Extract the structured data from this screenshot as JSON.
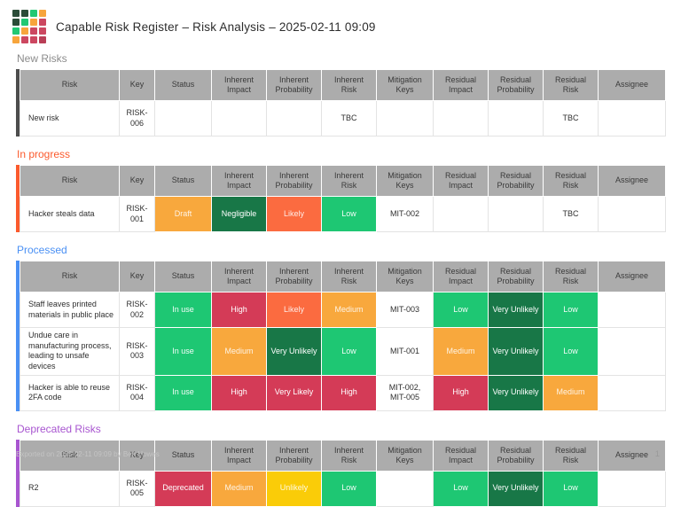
{
  "header": {
    "title": "Capable Risk Register – Risk Analysis – 2025-02-11 09:09"
  },
  "logo": {
    "palette": {
      "dark": "#2B4C38",
      "green": "#21C873",
      "orange": "#F7A53C",
      "red": "#CC4760",
      "red2": "#B93E56"
    },
    "grid": [
      [
        "dark",
        "dark",
        "green",
        "orange"
      ],
      [
        "dark",
        "green",
        "orange",
        "red"
      ],
      [
        "green",
        "orange",
        "red",
        "red"
      ],
      [
        "orange",
        "red",
        "red",
        "red2"
      ]
    ]
  },
  "columns": [
    "Risk",
    "Key",
    "Status",
    "Inherent Impact",
    "Inherent Probability",
    "Inherent Risk",
    "Mitigation Keys",
    "Residual Impact",
    "Residual Probability",
    "Residual Risk",
    "Assignee"
  ],
  "palette": {
    "green": {
      "bg": "#1EC773",
      "fg": "#FFFFFFF2"
    },
    "darkgreen": {
      "bg": "#187747",
      "fg": "#FFFFFF"
    },
    "orange": {
      "bg": "#F8A83D",
      "fg": "#FFFFFFDD"
    },
    "tomato": {
      "bg": "#FB6B40",
      "fg": "#FFFFFFDD"
    },
    "crimson": {
      "bg": "#D43B57",
      "fg": "#FFFFFF"
    },
    "yellow": {
      "bg": "#FACC08",
      "fg": "#FFFFFFE0"
    }
  },
  "sections": [
    {
      "id": "new-risks",
      "title": "New Risks",
      "title_color": "#8C8C8C",
      "accent": "#4D4D4D",
      "rows": [
        {
          "cells": [
            {
              "t": "New risk"
            },
            {
              "t": "RISK-006"
            },
            {
              "t": ""
            },
            {
              "t": ""
            },
            {
              "t": ""
            },
            {
              "t": "TBC"
            },
            {
              "t": ""
            },
            {
              "t": ""
            },
            {
              "t": ""
            },
            {
              "t": "TBC"
            },
            {
              "t": ""
            }
          ]
        }
      ]
    },
    {
      "id": "in-progress",
      "title": "In progress",
      "title_color": "#FB5A2D",
      "accent": "#FB5A2D",
      "rows": [
        {
          "cells": [
            {
              "t": "Hacker steals data"
            },
            {
              "t": "RISK-001"
            },
            {
              "t": "Draft",
              "c": "orange"
            },
            {
              "t": "Negligible",
              "c": "darkgreen"
            },
            {
              "t": "Likely",
              "c": "tomato"
            },
            {
              "t": "Low",
              "c": "green"
            },
            {
              "t": "MIT-002"
            },
            {
              "t": ""
            },
            {
              "t": ""
            },
            {
              "t": "TBC"
            },
            {
              "t": ""
            }
          ]
        }
      ]
    },
    {
      "id": "processed",
      "title": "Processed",
      "title_color": "#4A90F4",
      "accent": "#4A90F4",
      "rows": [
        {
          "cells": [
            {
              "t": "Staff leaves printed materials in public place"
            },
            {
              "t": "RISK-002"
            },
            {
              "t": "In use",
              "c": "green"
            },
            {
              "t": "High",
              "c": "crimson"
            },
            {
              "t": "Likely",
              "c": "tomato"
            },
            {
              "t": "Medium",
              "c": "orange"
            },
            {
              "t": "MIT-003"
            },
            {
              "t": "Low",
              "c": "green"
            },
            {
              "t": "Very Unlikely",
              "c": "darkgreen"
            },
            {
              "t": "Low",
              "c": "green"
            },
            {
              "t": ""
            }
          ]
        },
        {
          "cells": [
            {
              "t": "Undue care in manufacturing process, leading to unsafe devices"
            },
            {
              "t": "RISK-003"
            },
            {
              "t": "In use",
              "c": "green"
            },
            {
              "t": "Medium",
              "c": "orange"
            },
            {
              "t": "Very Unlikely",
              "c": "darkgreen"
            },
            {
              "t": "Low",
              "c": "green"
            },
            {
              "t": "MIT-001"
            },
            {
              "t": "Medium",
              "c": "orange"
            },
            {
              "t": "Very Unlikely",
              "c": "darkgreen"
            },
            {
              "t": "Low",
              "c": "green"
            },
            {
              "t": ""
            }
          ]
        },
        {
          "cells": [
            {
              "t": "Hacker is able to reuse 2FA code"
            },
            {
              "t": "RISK-004"
            },
            {
              "t": "In use",
              "c": "green"
            },
            {
              "t": "High",
              "c": "crimson"
            },
            {
              "t": "Very Likely",
              "c": "crimson"
            },
            {
              "t": "High",
              "c": "crimson"
            },
            {
              "t": "MIT-002, MIT-005"
            },
            {
              "t": "High",
              "c": "crimson"
            },
            {
              "t": "Very Unlikely",
              "c": "darkgreen"
            },
            {
              "t": "Medium",
              "c": "orange"
            },
            {
              "t": ""
            }
          ]
        }
      ]
    },
    {
      "id": "deprecated-risks",
      "title": "Deprecated Risks",
      "title_color": "#A855D0",
      "accent": "#A855D0",
      "rows": [
        {
          "cells": [
            {
              "t": "R2"
            },
            {
              "t": "RISK-005"
            },
            {
              "t": "Deprecated",
              "c": "crimson"
            },
            {
              "t": "Medium",
              "c": "orange"
            },
            {
              "t": "Unlikely",
              "c": "yellow"
            },
            {
              "t": "Low",
              "c": "green"
            },
            {
              "t": ""
            },
            {
              "t": "Low",
              "c": "green"
            },
            {
              "t": "Very Unlikely",
              "c": "darkgreen"
            },
            {
              "t": "Low",
              "c": "green"
            },
            {
              "t": ""
            }
          ]
        }
      ]
    }
  ],
  "footer": {
    "exported": "Exported on 2025-02-11 09:09 by Ben Howes",
    "page": "1"
  }
}
